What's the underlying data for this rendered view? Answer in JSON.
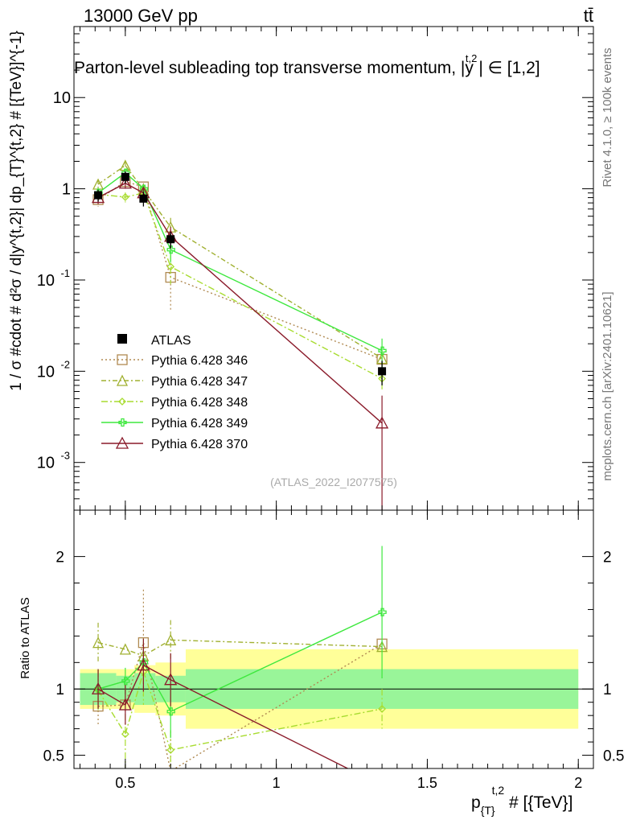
{
  "header": {
    "left": "13000 GeV pp",
    "right": "tt̄"
  },
  "side_labels": {
    "rivet": "Rivet 4.1.0, ≥ 100k events",
    "mcplots": "mcplots.cern.ch [arXiv:2401.10621]"
  },
  "chart_data": {
    "type": "line",
    "title": "Parton-level subleading top transverse momentum, |y",
    "title_sup": "t,2",
    "title_tail": "| ∈ [1,2]",
    "analysis_id": "(ATLAS_2022_I2077575)",
    "xlabel": "p",
    "xlabel_sub": "{T}",
    "xlabel_sup": "t,2",
    "xlabel_tail": " # [{TeV}]",
    "ylabel": "1 / σ #cdot # d²σ / d|y^{t,2}| dp_{T}^{t,2} # [{TeV}]^{-1}",
    "ratio_ylabel": "Ratio to ATLAS",
    "xlim": [
      0.33,
      2.05
    ],
    "ylim_main": [
      0.0003,
      60
    ],
    "ylim_ratio": [
      0.4,
      2.35
    ],
    "x_scale": "linear",
    "y_scale": "log",
    "x_ticks": [
      {
        "v": 0.5,
        "label": "0.5"
      },
      {
        "v": 1.0,
        "label": "1"
      },
      {
        "v": 1.5,
        "label": "1.5"
      },
      {
        "v": 2.0,
        "label": "2"
      }
    ],
    "y_ticks_main": [
      {
        "v": 10,
        "label": "10"
      },
      {
        "v": 1,
        "label": "1"
      },
      {
        "v": 0.1,
        "label": "10",
        "exp": "-1"
      },
      {
        "v": 0.01,
        "label": "10",
        "exp": "-2"
      },
      {
        "v": 0.001,
        "label": "10",
        "exp": "-3"
      }
    ],
    "y_ticks_ratio": [
      {
        "v": 0.5,
        "label": "0.5"
      },
      {
        "v": 1,
        "label": "1"
      },
      {
        "v": 2,
        "label": "2"
      }
    ],
    "x": [
      0.41,
      0.5,
      0.56,
      0.65,
      1.35
    ],
    "data": {
      "name": "ATLAS",
      "bins": [
        [
          0.35,
          0.47
        ],
        [
          0.47,
          0.53
        ],
        [
          0.53,
          0.6
        ],
        [
          0.6,
          0.7
        ],
        [
          0.7,
          2.0
        ]
      ],
      "values": [
        0.85,
        1.35,
        0.78,
        0.28,
        0.01
      ],
      "band_inner": [
        0.12,
        0.1,
        0.12,
        0.1,
        0.15
      ],
      "band_outer": [
        0.15,
        0.15,
        0.18,
        0.2,
        0.3
      ]
    },
    "legend_position": "middle-left",
    "series": [
      {
        "name": "Pythia 6.428 346",
        "color": "#b08a52",
        "dash": "2,3",
        "marker": "square",
        "values": [
          0.76,
          1.2,
          1.05,
          0.107,
          0.0135
        ],
        "ratio": [
          0.87,
          0.88,
          1.35,
          0.38,
          1.34
        ],
        "err": [
          0.12,
          0.12,
          0.1,
          0.06,
          0.003
        ],
        "ratio_err": [
          0.15,
          0.0,
          0.4,
          0.3,
          0.0
        ]
      },
      {
        "name": "Pythia 6.428 347",
        "color": "#a0b030",
        "dash": "6,3,2,3",
        "marker": "triangle",
        "values": [
          1.12,
          1.8,
          0.98,
          0.38,
          0.0138
        ],
        "ratio": [
          1.35,
          1.3,
          1.25,
          1.37,
          1.32
        ],
        "err": [
          0.15,
          0.2,
          0.1,
          0.1,
          0.003
        ],
        "ratio_err": [
          0.15,
          0.0,
          0.0,
          0.15,
          0.0
        ]
      },
      {
        "name": "Pythia 6.428 348",
        "color": "#a8dc30",
        "dash": "8,3,2,3",
        "marker": "diamond",
        "values": [
          0.87,
          0.81,
          0.9,
          0.14,
          0.0083
        ],
        "ratio": [
          0.99,
          0.66,
          1.13,
          0.54,
          0.85
        ],
        "err": [
          0.12,
          0.1,
          0.1,
          0.05,
          0.002
        ],
        "ratio_err": [
          0.15,
          0.25,
          0.25,
          0.15,
          0.15
        ]
      },
      {
        "name": "Pythia 6.428 349",
        "color": "#3ee83e",
        "dash": "",
        "marker": "cross",
        "values": [
          0.9,
          1.5,
          1.0,
          0.215,
          0.0168
        ],
        "ratio": [
          1.0,
          1.06,
          1.2,
          0.83,
          1.58
        ],
        "err": [
          0.12,
          0.15,
          0.1,
          0.06,
          0.006
        ],
        "ratio_err": [
          0.15,
          0.1,
          0.1,
          0.2,
          0.5
        ]
      },
      {
        "name": "Pythia 6.428 370",
        "color": "#8a1a2a",
        "dash": "",
        "marker": "triangle-open",
        "values": [
          0.8,
          1.15,
          0.9,
          0.3,
          0.0027
        ],
        "ratio": [
          1.0,
          0.88,
          1.18,
          1.07,
          0.27
        ],
        "err": [
          0.12,
          0.15,
          0.1,
          0.08,
          0.0027
        ],
        "ratio_err": [
          0.15,
          0.15,
          0.2,
          0.2,
          0.0
        ]
      }
    ]
  }
}
